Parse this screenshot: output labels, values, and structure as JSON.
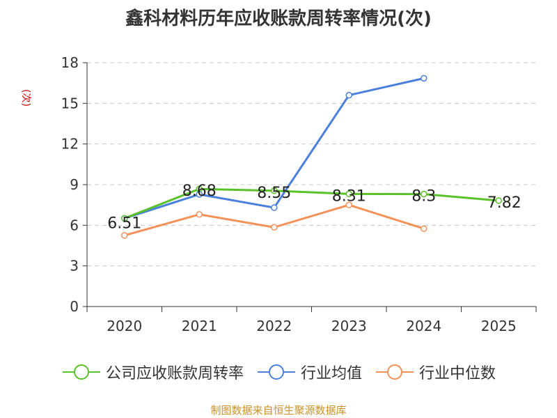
{
  "chart_data": {
    "type": "line",
    "title": "鑫科材料历年应收账款周转率情况(次)",
    "ylabel": "(次)",
    "xlabel": "",
    "categories": [
      "2020",
      "2021",
      "2022",
      "2023",
      "2024",
      "2025"
    ],
    "ylim": [
      0,
      18
    ],
    "yticks": [
      0,
      3,
      6,
      9,
      12,
      15,
      18
    ],
    "grid": true,
    "legend_position": "bottom",
    "series": [
      {
        "name": "公司应收账款周转率",
        "color": "#5bc12a",
        "values": [
          6.51,
          8.68,
          8.55,
          8.31,
          8.3,
          7.82
        ],
        "labels": [
          "6.51",
          "8.68",
          "8.55",
          "8.31",
          "8.3",
          "7.82"
        ]
      },
      {
        "name": "行业均值",
        "color": "#4a7fdc",
        "values": [
          6.51,
          8.28,
          7.3,
          15.6,
          16.85,
          null
        ]
      },
      {
        "name": "行业中位数",
        "color": "#f39158",
        "values": [
          5.25,
          6.8,
          5.85,
          7.5,
          5.75,
          null
        ]
      }
    ]
  },
  "source": "制图数据来自恒生聚源数据库"
}
